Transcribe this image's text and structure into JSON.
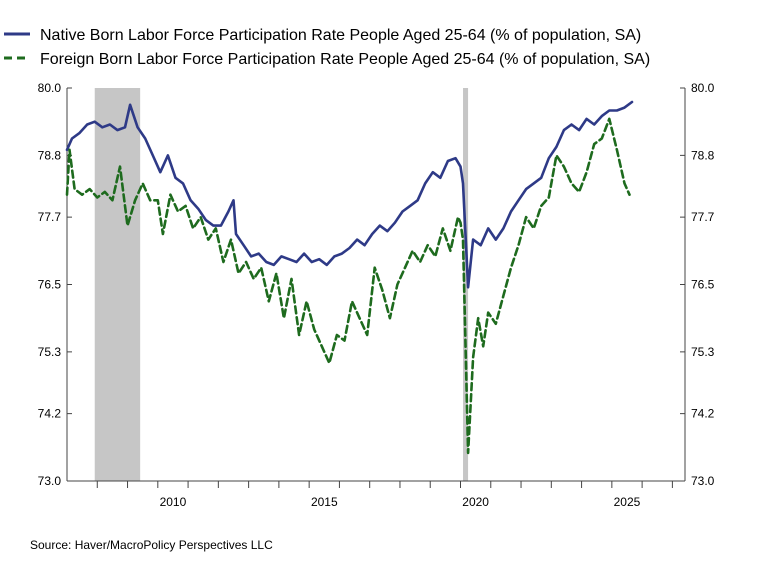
{
  "chart_data": {
    "type": "line",
    "title": "",
    "xlabel": "",
    "ylabel": "",
    "ylim": [
      73.0,
      80.0
    ],
    "xlim": [
      "2007-01",
      "2027-06"
    ],
    "y_ticks": [
      "73.0",
      "74.2",
      "75.3",
      "76.5",
      "77.7",
      "78.8",
      "80.0"
    ],
    "x_ticks": [
      "2010",
      "2015",
      "2020",
      "2025"
    ],
    "grid": false,
    "legend_position": "top",
    "recessions": [
      {
        "start": "2007-12",
        "end": "2009-06"
      },
      {
        "start": "2020-02",
        "end": "2020-04"
      }
    ],
    "series": [
      {
        "name": "Native Born Labor Force Participation Rate People Aged 25-64 (% of population, SA)",
        "color": "#2e3a87",
        "dash": "solid",
        "points": [
          [
            "2007-01",
            78.9
          ],
          [
            "2007-03",
            79.1
          ],
          [
            "2007-06",
            79.2
          ],
          [
            "2007-09",
            79.35
          ],
          [
            "2007-12",
            79.4
          ],
          [
            "2008-03",
            79.3
          ],
          [
            "2008-06",
            79.35
          ],
          [
            "2008-09",
            79.25
          ],
          [
            "2008-12",
            79.3
          ],
          [
            "2009-02",
            79.7
          ],
          [
            "2009-05",
            79.3
          ],
          [
            "2009-08",
            79.1
          ],
          [
            "2009-11",
            78.8
          ],
          [
            "2010-02",
            78.5
          ],
          [
            "2010-05",
            78.8
          ],
          [
            "2010-08",
            78.4
          ],
          [
            "2010-11",
            78.3
          ],
          [
            "2011-02",
            78.0
          ],
          [
            "2011-05",
            77.85
          ],
          [
            "2011-08",
            77.65
          ],
          [
            "2011-11",
            77.55
          ],
          [
            "2012-02",
            77.55
          ],
          [
            "2012-05",
            77.8
          ],
          [
            "2012-07",
            78.0
          ],
          [
            "2012-08",
            77.4
          ],
          [
            "2012-11",
            77.2
          ],
          [
            "2013-02",
            77.0
          ],
          [
            "2013-05",
            77.05
          ],
          [
            "2013-08",
            76.9
          ],
          [
            "2013-11",
            76.85
          ],
          [
            "2014-02",
            77.0
          ],
          [
            "2014-05",
            76.95
          ],
          [
            "2014-08",
            76.9
          ],
          [
            "2014-11",
            77.05
          ],
          [
            "2015-02",
            76.9
          ],
          [
            "2015-05",
            76.95
          ],
          [
            "2015-08",
            76.85
          ],
          [
            "2015-11",
            77.0
          ],
          [
            "2016-02",
            77.05
          ],
          [
            "2016-05",
            77.15
          ],
          [
            "2016-08",
            77.3
          ],
          [
            "2016-11",
            77.2
          ],
          [
            "2017-02",
            77.4
          ],
          [
            "2017-05",
            77.55
          ],
          [
            "2017-08",
            77.45
          ],
          [
            "2017-11",
            77.6
          ],
          [
            "2018-02",
            77.8
          ],
          [
            "2018-05",
            77.9
          ],
          [
            "2018-08",
            78.0
          ],
          [
            "2018-11",
            78.3
          ],
          [
            "2019-02",
            78.5
          ],
          [
            "2019-05",
            78.4
          ],
          [
            "2019-08",
            78.7
          ],
          [
            "2019-11",
            78.75
          ],
          [
            "2020-01",
            78.6
          ],
          [
            "2020-02",
            78.3
          ],
          [
            "2020-04",
            76.45
          ],
          [
            "2020-06",
            77.3
          ],
          [
            "2020-09",
            77.2
          ],
          [
            "2020-12",
            77.5
          ],
          [
            "2021-03",
            77.3
          ],
          [
            "2021-06",
            77.5
          ],
          [
            "2021-09",
            77.8
          ],
          [
            "2021-12",
            78.0
          ],
          [
            "2022-03",
            78.2
          ],
          [
            "2022-06",
            78.3
          ],
          [
            "2022-09",
            78.4
          ],
          [
            "2022-12",
            78.75
          ],
          [
            "2023-03",
            78.95
          ],
          [
            "2023-06",
            79.25
          ],
          [
            "2023-09",
            79.35
          ],
          [
            "2023-12",
            79.25
          ],
          [
            "2024-03",
            79.45
          ],
          [
            "2024-06",
            79.35
          ],
          [
            "2024-09",
            79.5
          ],
          [
            "2024-12",
            79.6
          ],
          [
            "2025-03",
            79.6
          ],
          [
            "2025-06",
            79.65
          ],
          [
            "2025-09",
            79.75
          ]
        ]
      },
      {
        "name": "Foreign Born Labor Force Participation Rate People Aged 25-64 (% of population, SA)",
        "color": "#1e6b1e",
        "dash": "dashed",
        "points": [
          [
            "2007-01",
            78.1
          ],
          [
            "2007-02",
            78.9
          ],
          [
            "2007-04",
            78.2
          ],
          [
            "2007-07",
            78.1
          ],
          [
            "2007-10",
            78.2
          ],
          [
            "2008-01",
            78.05
          ],
          [
            "2008-04",
            78.15
          ],
          [
            "2008-07",
            78.0
          ],
          [
            "2008-10",
            78.6
          ],
          [
            "2009-01",
            77.55
          ],
          [
            "2009-04",
            78.0
          ],
          [
            "2009-07",
            78.3
          ],
          [
            "2009-10",
            78.0
          ],
          [
            "2010-01",
            78.0
          ],
          [
            "2010-03",
            77.4
          ],
          [
            "2010-06",
            78.1
          ],
          [
            "2010-09",
            77.8
          ],
          [
            "2010-12",
            77.9
          ],
          [
            "2011-03",
            77.5
          ],
          [
            "2011-06",
            77.7
          ],
          [
            "2011-09",
            77.3
          ],
          [
            "2011-12",
            77.5
          ],
          [
            "2012-03",
            76.9
          ],
          [
            "2012-06",
            77.3
          ],
          [
            "2012-09",
            76.7
          ],
          [
            "2012-12",
            76.9
          ],
          [
            "2013-03",
            76.6
          ],
          [
            "2013-06",
            76.8
          ],
          [
            "2013-09",
            76.2
          ],
          [
            "2013-12",
            76.7
          ],
          [
            "2014-03",
            75.9
          ],
          [
            "2014-06",
            76.6
          ],
          [
            "2014-09",
            75.6
          ],
          [
            "2014-12",
            76.2
          ],
          [
            "2015-03",
            75.7
          ],
          [
            "2015-06",
            75.4
          ],
          [
            "2015-09",
            75.1
          ],
          [
            "2015-12",
            75.6
          ],
          [
            "2016-03",
            75.5
          ],
          [
            "2016-06",
            76.2
          ],
          [
            "2016-09",
            75.9
          ],
          [
            "2016-12",
            75.6
          ],
          [
            "2017-03",
            76.8
          ],
          [
            "2017-06",
            76.4
          ],
          [
            "2017-09",
            75.9
          ],
          [
            "2017-12",
            76.5
          ],
          [
            "2018-03",
            76.8
          ],
          [
            "2018-06",
            77.1
          ],
          [
            "2018-09",
            76.9
          ],
          [
            "2018-12",
            77.2
          ],
          [
            "2019-03",
            77.0
          ],
          [
            "2019-06",
            77.5
          ],
          [
            "2019-09",
            77.1
          ],
          [
            "2019-12",
            77.7
          ],
          [
            "2020-01",
            77.6
          ],
          [
            "2020-02",
            77.3
          ],
          [
            "2020-04",
            73.5
          ],
          [
            "2020-06",
            75.2
          ],
          [
            "2020-08",
            75.9
          ],
          [
            "2020-10",
            75.4
          ],
          [
            "2020-12",
            76.0
          ],
          [
            "2021-03",
            75.8
          ],
          [
            "2021-06",
            76.3
          ],
          [
            "2021-09",
            76.8
          ],
          [
            "2021-12",
            77.2
          ],
          [
            "2022-03",
            77.7
          ],
          [
            "2022-06",
            77.5
          ],
          [
            "2022-09",
            77.9
          ],
          [
            "2022-12",
            78.05
          ],
          [
            "2023-03",
            78.8
          ],
          [
            "2023-06",
            78.6
          ],
          [
            "2023-09",
            78.3
          ],
          [
            "2023-12",
            78.15
          ],
          [
            "2024-03",
            78.5
          ],
          [
            "2024-06",
            79.0
          ],
          [
            "2024-09",
            79.1
          ],
          [
            "2024-12",
            79.45
          ],
          [
            "2025-03",
            78.9
          ],
          [
            "2025-06",
            78.3
          ],
          [
            "2025-08",
            78.1
          ]
        ]
      }
    ]
  },
  "source_text": "Source:  Haver/MacroPolicy Perspectives LLC",
  "colors": {
    "recession_shade": "#c6c6c6",
    "axis": "#444444"
  }
}
